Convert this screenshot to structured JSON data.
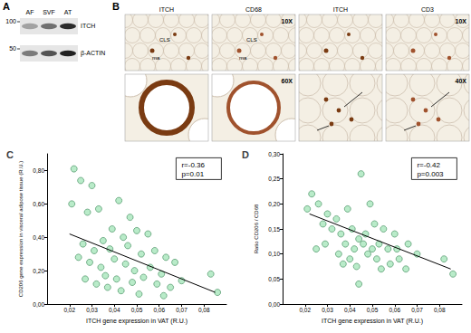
{
  "panel_A": {
    "label": "A",
    "lanes": [
      "AF",
      "SVF",
      "AT"
    ],
    "markers": [
      100,
      50
    ],
    "bands": [
      "ITCH",
      "β-ACTIN"
    ]
  },
  "panel_B": {
    "label": "B",
    "groups": [
      {
        "stains": [
          "ITCH",
          "CD68"
        ],
        "magnifications": [
          "10X",
          "60X"
        ],
        "annotations": [
          "CLS",
          "ma"
        ]
      },
      {
        "stains": [
          "ITCH",
          "CD3"
        ],
        "magnifications": [
          "10X",
          "40X"
        ]
      }
    ]
  },
  "chart_data": [
    {
      "type": "scatter",
      "title": "C",
      "xlabel": "ITCH gene expression in VAT (R.U.)",
      "ylabel": "CD206 gene expression in visceral adipose tissue (R.U.)",
      "color": "#a8e6bc",
      "grid": false,
      "xlim": [
        0.01,
        0.09
      ],
      "xticks": [
        {
          "value": 0.02,
          "label": "0,02"
        },
        {
          "value": 0.03,
          "label": "0,03"
        },
        {
          "value": 0.04,
          "label": "0,04"
        },
        {
          "value": 0.05,
          "label": "0,05"
        },
        {
          "value": 0.06,
          "label": "0,06"
        },
        {
          "value": 0.07,
          "label": "0,07"
        },
        {
          "value": 0.08,
          "label": "0,08"
        }
      ],
      "ylim": [
        0,
        0.9
      ],
      "yticks": [
        {
          "value": 0,
          "label": "0,00"
        },
        {
          "value": 0.2,
          "label": "0,20"
        },
        {
          "value": 0.4,
          "label": "0,40"
        },
        {
          "value": 0.6,
          "label": "0,60"
        },
        {
          "value": 0.8,
          "label": "0,80"
        }
      ],
      "x": [
        0.022,
        0.025,
        0.03,
        0.021,
        0.028,
        0.033,
        0.042,
        0.047,
        0.039,
        0.044,
        0.05,
        0.055,
        0.035,
        0.026,
        0.031,
        0.038,
        0.046,
        0.052,
        0.058,
        0.063,
        0.024,
        0.029,
        0.034,
        0.04,
        0.045,
        0.049,
        0.056,
        0.061,
        0.067,
        0.036,
        0.041,
        0.048,
        0.053,
        0.059,
        0.065,
        0.027,
        0.032,
        0.037,
        0.043,
        0.07,
        0.083,
        0.086,
        0.051,
        0.062
      ],
      "values": [
        0.81,
        0.74,
        0.71,
        0.6,
        0.55,
        0.57,
        0.62,
        0.52,
        0.45,
        0.4,
        0.44,
        0.42,
        0.38,
        0.36,
        0.32,
        0.33,
        0.35,
        0.3,
        0.32,
        0.28,
        0.28,
        0.25,
        0.22,
        0.27,
        0.24,
        0.2,
        0.22,
        0.18,
        0.25,
        0.17,
        0.15,
        0.13,
        0.16,
        0.12,
        0.1,
        0.15,
        0.12,
        0.1,
        0.08,
        0.14,
        0.18,
        0.07,
        0.06,
        0.05
      ],
      "trend": {
        "x": [
          0.02,
          0.085
        ],
        "values": [
          0.42,
          0.07
        ]
      },
      "annotations": [
        "r=-0.36",
        "p=0.01"
      ]
    },
    {
      "type": "scatter",
      "title": "D",
      "xlabel": "ITCH gene expression in VAT (R.U.)",
      "ylabel": "Ratio CD206 / CD68",
      "color": "#a8e6bc",
      "grid": false,
      "xlim": [
        0.01,
        0.09
      ],
      "xticks": [
        {
          "value": 0.02,
          "label": "0,02"
        },
        {
          "value": 0.03,
          "label": "0,03"
        },
        {
          "value": 0.04,
          "label": "0,04"
        },
        {
          "value": 0.05,
          "label": "0,05"
        },
        {
          "value": 0.06,
          "label": "0,06"
        },
        {
          "value": 0.07,
          "label": "0,07"
        },
        {
          "value": 0.08,
          "label": "0,08"
        }
      ],
      "ylim": [
        0,
        0.3
      ],
      "yticks": [
        {
          "value": 0,
          "label": "0,00"
        },
        {
          "value": 0.05,
          "label": "0,05"
        },
        {
          "value": 0.1,
          "label": "0,10"
        },
        {
          "value": 0.15,
          "label": "0,15"
        },
        {
          "value": 0.2,
          "label": "0,20"
        },
        {
          "value": 0.25,
          "label": "0,25"
        },
        {
          "value": 0.3,
          "label": "0,30"
        }
      ],
      "x": [
        0.023,
        0.026,
        0.021,
        0.03,
        0.028,
        0.034,
        0.039,
        0.045,
        0.049,
        0.032,
        0.036,
        0.041,
        0.044,
        0.047,
        0.051,
        0.055,
        0.06,
        0.038,
        0.042,
        0.046,
        0.05,
        0.053,
        0.057,
        0.035,
        0.04,
        0.048,
        0.052,
        0.058,
        0.062,
        0.065,
        0.043,
        0.054,
        0.066,
        0.07,
        0.029,
        0.025,
        0.037,
        0.044,
        0.082,
        0.086,
        0.061
      ],
      "values": [
        0.22,
        0.2,
        0.19,
        0.18,
        0.16,
        0.17,
        0.19,
        0.26,
        0.2,
        0.15,
        0.14,
        0.15,
        0.13,
        0.14,
        0.16,
        0.15,
        0.14,
        0.12,
        0.11,
        0.12,
        0.11,
        0.12,
        0.11,
        0.1,
        0.09,
        0.1,
        0.09,
        0.08,
        0.09,
        0.07,
        0.075,
        0.07,
        0.12,
        0.1,
        0.12,
        0.11,
        0.08,
        0.04,
        0.09,
        0.06,
        0.11
      ],
      "trend": {
        "x": [
          0.022,
          0.085
        ],
        "values": [
          0.18,
          0.07
        ]
      },
      "annotations": [
        "r=-0.42",
        "p=0.003"
      ]
    }
  ]
}
